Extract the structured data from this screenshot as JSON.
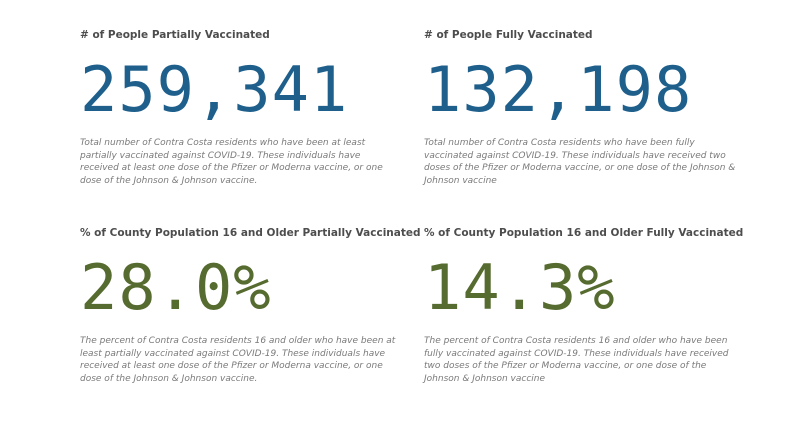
{
  "kpis": {
    "partial_count": {
      "title": "# of People Partially Vaccinated",
      "value": "259,341",
      "description": "Total number of Contra Costa residents who have been at least partially vaccinated against COVID-19. These individuals have received at least one dose of the Pfizer or Moderna vaccine, or one dose of the Johnson & Johnson vaccine.",
      "color": "#1e5f8c"
    },
    "full_count": {
      "title": "# of People Fully Vaccinated",
      "value": "132,198",
      "description": "Total number of Contra Costa residents who have been fully vaccinated against COVID-19. These individuals have received two doses of the Pfizer or Moderna vaccine, or one dose of the Johnson & Johnson vaccine",
      "color": "#1e5f8c"
    },
    "partial_pct": {
      "title": "% of County Population 16 and Older Partially Vaccinated",
      "value": "28.0%",
      "description": "The percent of Contra Costa residents 16 and older who have been at least partially vaccinated against COVID-19. These individuals have received at least one dose of the Pfizer or Moderna vaccine, or one dose of the Johnson & Johnson vaccine.",
      "color": "#566b2f"
    },
    "full_pct": {
      "title": "% of County Population 16 and Older Fully Vaccinated",
      "value": "14.3%",
      "description": "The percent of Contra Costa residents 16 and older who have been fully vaccinated against COVID-19. These individuals have received two doses of the Pfizer or Moderna vaccine, or one dose of the Johnson & Johnson vaccine",
      "color": "#566b2f"
    }
  }
}
